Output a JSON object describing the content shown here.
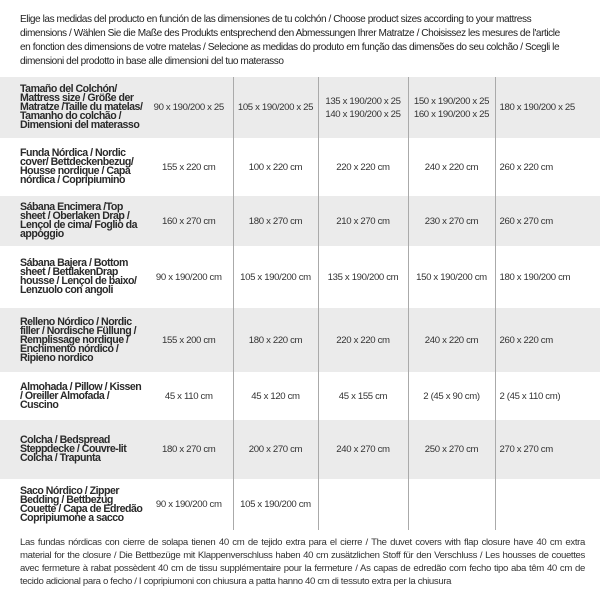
{
  "intro": "Elige las medidas del producto en función de las dimensiones de tu colchón / Choose product sizes according to your mattress dimensions / Wählen Sie die Maße des Produkts entsprechend den Abmessungen Ihrer Matratze / Choisissez les mesures de l'article en fonction des dimensions de votre matelas / Selecione as medidas do produto em função das dimensões do seu colchão / Scegli le dimensioni del prodotto in base alle dimensioni del tuo materasso",
  "header": {
    "label": "Tamaño del Colchón/ Mattress size / Größe der Matratze /Taille du matelas/ Tamanho do colchão / Dimensioni del materasso",
    "cols": [
      [
        "90 x 190/200 x 25"
      ],
      [
        "105 x 190/200 x 25"
      ],
      [
        "135 x 190/200 x 25",
        "140 x 190/200 x 25"
      ],
      [
        "150 x 190/200 x 25",
        "160 x 190/200 x 25"
      ],
      [
        "180 x 190/200 x 25"
      ]
    ]
  },
  "rows": [
    {
      "label": "Funda Nórdica /  Nordic cover/ Bettdeckenbezug/ Housse nordique  / Capa nórdica / Copripiumino",
      "values": [
        "155 x 220 cm",
        "100 x 220 cm",
        "220 x 220 cm",
        "240 x 220 cm",
        "260 x 220 cm"
      ]
    },
    {
      "label": "Sábana Encimera /Top sheet / Oberlaken Drap / Lençol de cima/ Foglio da appoggio",
      "values": [
        "160 x 270 cm",
        "180 x 270 cm",
        "210 x 270 cm",
        "230 x 270 cm",
        "260 x 270 cm"
      ]
    },
    {
      "label": "Sábana Bajera / Bottom sheet / BettlakenDrap housse / Lençol de baixo/ Lenzuolo con angoli",
      "values": [
        "90 x 190/200 cm",
        "105 x 190/200 cm",
        "135 x 190/200 cm",
        "150 x 190/200 cm",
        "180 x 190/200 cm"
      ]
    },
    {
      "label": "Relleno Nórdico / Nordic filler / Nordische Füllung / Remplissage nordique / Enchimento nórdico / Ripieno nordico",
      "values": [
        "155 x 200 cm",
        "180 x 220 cm",
        "220 x 220 cm",
        "240 x 220 cm",
        "260 x 220 cm"
      ]
    },
    {
      "label": "Almohada  / Pillow / Kissen / Oreiller Almofada / Cuscino",
      "values": [
        "45 x 110 cm",
        "45 x 120 cm",
        "45 x 155 cm",
        "2 (45 x 90 cm)",
        "2 (45 x 110 cm)"
      ]
    },
    {
      "label": "Colcha / Bedspread Steppdecke / Couvre-lit Colcha / Trapunta",
      "values": [
        "180 x 270 cm",
        "200 x 270 cm",
        "240 x 270 cm",
        "250 x 270 cm",
        "270 x 270 cm"
      ]
    },
    {
      "label": "Saco Nórdico / Zipper Bedding / Bettbezug Couette  / Capa de Edredão Copripiumone a sacco",
      "values": [
        "90 x 190/200 cm",
        "105 x 190/200 cm",
        "",
        "",
        ""
      ]
    }
  ],
  "footnote": "Las fundas nórdicas con cierre de solapa tienen 40 cm de tejido extra para el cierre  / The duvet covers with flap closure have 40 cm extra material for the closure / Die Bettbezüge mit Klappenverschluss haben 40 cm zusätzlichen Stoff für den Verschluss / Les housses de couettes avec fermeture à rabat possèdent 40 cm de tissu supplémentaire pour la fermeture / As capas de edredão com fecho tipo aba têm 40 cm de tecido adicional para o fecho / I copripiumoni con chiusura a patta hanno 40 cm di tessuto extra per la chiusura"
}
